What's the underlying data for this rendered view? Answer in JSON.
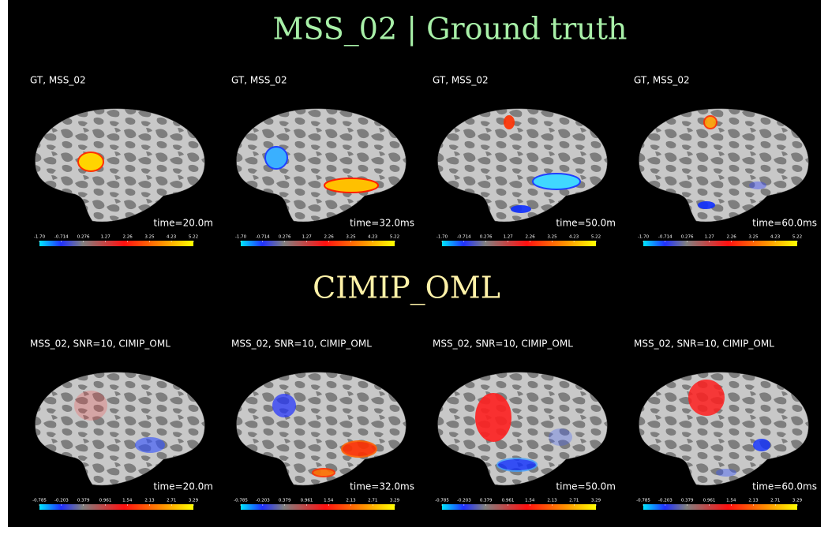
{
  "sections": [
    {
      "title": "MSS_02 | Ground truth",
      "colorbar_ticks": [
        {
          "value": -1.7,
          "label": "-1.70"
        },
        -0.714,
        0.276,
        1.27,
        2.26,
        3.25,
        4.23,
        5.22
      ],
      "panels": [
        {
          "label": "GT, MSS_02",
          "time": "time=20.0m"
        },
        {
          "label": "GT, MSS_02",
          "time": "time=32.0ms"
        },
        {
          "label": "GT, MSS_02",
          "time": "time=50.0m"
        },
        {
          "label": "GT, MSS_02",
          "time": "time=60.0ms"
        }
      ]
    },
    {
      "title": "CIMIP_OML",
      "colorbar_ticks": [
        -0.785,
        -0.203,
        0.379,
        0.961,
        1.54,
        2.13,
        2.71,
        3.29
      ],
      "panels": [
        {
          "label": "MSS_02, SNR=10, CIMIP_OML",
          "time": "time=20.0m"
        },
        {
          "label": "MSS_02, SNR=10, CIMIP_OML",
          "time": "time=32.0ms"
        },
        {
          "label": "MSS_02, SNR=10, CIMIP_OML",
          "time": "time=50.0m"
        },
        {
          "label": "MSS_02, SNR=10, CIMIP_OML",
          "time": "time=60.0ms"
        }
      ]
    }
  ]
}
